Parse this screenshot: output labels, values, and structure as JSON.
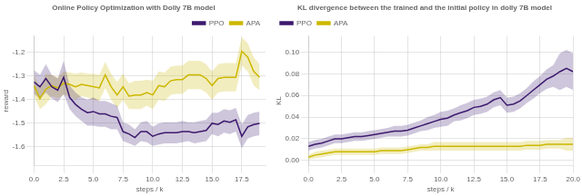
{
  "chart_data": [
    {
      "type": "line",
      "title": "Online Policy Optimization with Dolly 7B model",
      "xlabel": "steps / k",
      "ylabel": "reward",
      "xlim": [
        0.0,
        19.5
      ],
      "ylim": [
        -1.68,
        -1.13
      ],
      "xticks": [
        {
          "value": 0,
          "label": "0.0"
        },
        2.5,
        {
          "value": 5,
          "label": "5.0"
        },
        7.5,
        {
          "value": 10,
          "label": "10.0"
        },
        12.5,
        {
          "value": 15,
          "label": "15.0"
        },
        17.5
      ],
      "yticks": [
        -1.6,
        -1.5,
        -1.4,
        -1.3,
        -1.2
      ],
      "grid": true,
      "legend": "upper right",
      "x": [
        0.0,
        0.5,
        1.0,
        1.5,
        2.0,
        2.5,
        3.0,
        3.5,
        4.0,
        4.5,
        5.0,
        5.5,
        6.0,
        6.5,
        7.0,
        7.5,
        8.0,
        8.5,
        9.0,
        9.5,
        10.0,
        10.5,
        11.0,
        11.5,
        12.0,
        12.5,
        13.0,
        13.5,
        14.0,
        14.5,
        15.0,
        15.5,
        16.0,
        16.5,
        17.0,
        17.5,
        18.0,
        18.5,
        19.0
      ],
      "series": [
        {
          "name": "PPO",
          "color": "#3d1a6e",
          "values": [
            -1.325,
            -1.345,
            -1.31,
            -1.345,
            -1.36,
            -1.305,
            -1.39,
            -1.42,
            -1.44,
            -1.455,
            -1.45,
            -1.46,
            -1.46,
            -1.47,
            -1.475,
            -1.535,
            -1.545,
            -1.56,
            -1.535,
            -1.535,
            -1.555,
            -1.545,
            -1.54,
            -1.54,
            -1.54,
            -1.535,
            -1.535,
            -1.54,
            -1.535,
            -1.53,
            -1.5,
            -1.505,
            -1.49,
            -1.495,
            -1.485,
            -1.555,
            -1.515,
            -1.505,
            -1.5
          ],
          "lo": [
            -1.375,
            -1.395,
            -1.37,
            -1.395,
            -1.41,
            -1.375,
            -1.44,
            -1.47,
            -1.49,
            -1.51,
            -1.51,
            -1.515,
            -1.515,
            -1.525,
            -1.525,
            -1.575,
            -1.585,
            -1.595,
            -1.575,
            -1.58,
            -1.595,
            -1.59,
            -1.585,
            -1.585,
            -1.585,
            -1.58,
            -1.575,
            -1.585,
            -1.58,
            -1.575,
            -1.545,
            -1.555,
            -1.54,
            -1.545,
            -1.535,
            -1.605,
            -1.565,
            -1.555,
            -1.55
          ],
          "hi": [
            -1.275,
            -1.295,
            -1.25,
            -1.295,
            -1.31,
            -1.235,
            -1.34,
            -1.37,
            -1.39,
            -1.4,
            -1.39,
            -1.405,
            -1.405,
            -1.415,
            -1.425,
            -1.495,
            -1.505,
            -1.525,
            -1.495,
            -1.49,
            -1.515,
            -1.5,
            -1.495,
            -1.495,
            -1.495,
            -1.49,
            -1.495,
            -1.495,
            -1.49,
            -1.485,
            -1.455,
            -1.455,
            -1.44,
            -1.445,
            -1.435,
            -1.505,
            -1.465,
            -1.455,
            -1.45
          ]
        },
        {
          "name": "APA",
          "color": "#ccb800",
          "values": [
            -1.34,
            -1.395,
            -1.355,
            -1.34,
            -1.35,
            -1.33,
            -1.335,
            -1.345,
            -1.335,
            -1.34,
            -1.345,
            -1.35,
            -1.295,
            -1.345,
            -1.38,
            -1.345,
            -1.385,
            -1.38,
            -1.38,
            -1.37,
            -1.38,
            -1.34,
            -1.345,
            -1.32,
            -1.315,
            -1.315,
            -1.295,
            -1.295,
            -1.295,
            -1.31,
            -1.34,
            -1.31,
            -1.305,
            -1.305,
            -1.305,
            -1.195,
            -1.22,
            -1.28,
            -1.305
          ],
          "lo": [
            -1.385,
            -1.44,
            -1.42,
            -1.385,
            -1.395,
            -1.38,
            -1.385,
            -1.4,
            -1.385,
            -1.39,
            -1.4,
            -1.405,
            -1.35,
            -1.4,
            -1.435,
            -1.4,
            -1.44,
            -1.44,
            -1.44,
            -1.425,
            -1.44,
            -1.4,
            -1.405,
            -1.38,
            -1.375,
            -1.375,
            -1.355,
            -1.355,
            -1.355,
            -1.37,
            -1.4,
            -1.37,
            -1.365,
            -1.365,
            -1.365,
            -1.255,
            -1.28,
            -1.34,
            -1.36
          ],
          "hi": [
            -1.295,
            -1.35,
            -1.29,
            -1.295,
            -1.305,
            -1.28,
            -1.285,
            -1.29,
            -1.285,
            -1.29,
            -1.29,
            -1.295,
            -1.24,
            -1.29,
            -1.325,
            -1.29,
            -1.33,
            -1.32,
            -1.32,
            -1.315,
            -1.32,
            -1.28,
            -1.285,
            -1.26,
            -1.255,
            -1.255,
            -1.235,
            -1.235,
            -1.235,
            -1.25,
            -1.28,
            -1.25,
            -1.245,
            -1.245,
            -1.245,
            -1.135,
            -1.16,
            -1.22,
            -1.25
          ]
        }
      ]
    },
    {
      "type": "line",
      "title": "KL divergence between the trained and the initial policy in dolly 7B model",
      "xlabel": "steps / k",
      "ylabel": "KL",
      "xlim": [
        0.0,
        20.0
      ],
      "ylim": [
        -0.005,
        0.115
      ],
      "xticks": [
        {
          "value": 0,
          "label": "0.0"
        },
        2.5,
        {
          "value": 5,
          "label": "5.0"
        },
        7.5,
        {
          "value": 10,
          "label": "10.0"
        },
        12.5,
        {
          "value": 15,
          "label": "15.0"
        },
        17.5,
        {
          "value": 20,
          "label": "20.0"
        }
      ],
      "yticks": [
        {
          "value": 0,
          "label": "0.00"
        },
        0.02,
        0.04,
        0.06,
        0.08,
        {
          "value": 0.1,
          "label": "0.10"
        }
      ],
      "grid": true,
      "legend": "upper left",
      "x": [
        0.0,
        0.5,
        1.0,
        1.5,
        2.0,
        2.5,
        3.0,
        3.5,
        4.0,
        4.5,
        5.0,
        5.5,
        6.0,
        6.5,
        7.0,
        7.5,
        8.0,
        8.5,
        9.0,
        9.5,
        10.0,
        10.5,
        11.0,
        11.5,
        12.0,
        12.5,
        13.0,
        13.5,
        14.0,
        14.5,
        15.0,
        15.5,
        16.0,
        16.5,
        17.0,
        17.5,
        18.0,
        18.5,
        19.0,
        19.5,
        20.0
      ],
      "series": [
        {
          "name": "PPO",
          "color": "#3d1a6e",
          "values": [
            0.013,
            0.015,
            0.016,
            0.018,
            0.02,
            0.02,
            0.021,
            0.022,
            0.022,
            0.023,
            0.024,
            0.025,
            0.026,
            0.027,
            0.027,
            0.028,
            0.03,
            0.032,
            0.034,
            0.036,
            0.038,
            0.039,
            0.042,
            0.044,
            0.046,
            0.049,
            0.05,
            0.052,
            0.056,
            0.058,
            0.051,
            0.052,
            0.055,
            0.06,
            0.065,
            0.07,
            0.075,
            0.078,
            0.082,
            0.085,
            0.082
          ],
          "lo": [
            0.009,
            0.011,
            0.012,
            0.014,
            0.016,
            0.016,
            0.017,
            0.018,
            0.018,
            0.019,
            0.02,
            0.021,
            0.022,
            0.022,
            0.022,
            0.023,
            0.025,
            0.027,
            0.028,
            0.03,
            0.031,
            0.032,
            0.036,
            0.037,
            0.039,
            0.042,
            0.043,
            0.045,
            0.049,
            0.051,
            0.044,
            0.045,
            0.048,
            0.053,
            0.057,
            0.062,
            0.066,
            0.068,
            0.065,
            0.068,
            0.065
          ],
          "hi": [
            0.017,
            0.019,
            0.02,
            0.022,
            0.024,
            0.024,
            0.025,
            0.026,
            0.026,
            0.027,
            0.028,
            0.029,
            0.03,
            0.032,
            0.032,
            0.033,
            0.035,
            0.037,
            0.04,
            0.042,
            0.045,
            0.046,
            0.048,
            0.051,
            0.053,
            0.056,
            0.057,
            0.059,
            0.063,
            0.065,
            0.058,
            0.059,
            0.062,
            0.067,
            0.073,
            0.078,
            0.084,
            0.088,
            0.099,
            0.102,
            0.099
          ]
        },
        {
          "name": "APA",
          "color": "#ccb800",
          "values": [
            0.003,
            0.005,
            0.006,
            0.007,
            0.008,
            0.008,
            0.008,
            0.008,
            0.008,
            0.008,
            0.008,
            0.009,
            0.009,
            0.009,
            0.009,
            0.01,
            0.011,
            0.012,
            0.012,
            0.013,
            0.013,
            0.013,
            0.013,
            0.013,
            0.013,
            0.013,
            0.013,
            0.013,
            0.013,
            0.013,
            0.013,
            0.013,
            0.013,
            0.014,
            0.014,
            0.014,
            0.015,
            0.015,
            0.015,
            0.015,
            0.015
          ],
          "lo": [
            0.001,
            0.002,
            0.003,
            0.004,
            0.005,
            0.005,
            0.005,
            0.005,
            0.005,
            0.005,
            0.005,
            0.006,
            0.006,
            0.006,
            0.006,
            0.007,
            0.008,
            0.009,
            0.009,
            0.009,
            0.009,
            0.009,
            0.009,
            0.009,
            0.009,
            0.009,
            0.009,
            0.009,
            0.009,
            0.009,
            0.009,
            0.009,
            0.009,
            0.01,
            0.01,
            0.01,
            0.011,
            0.011,
            0.011,
            0.009,
            0.009
          ],
          "hi": [
            0.005,
            0.008,
            0.009,
            0.01,
            0.011,
            0.011,
            0.011,
            0.011,
            0.011,
            0.011,
            0.011,
            0.012,
            0.012,
            0.012,
            0.012,
            0.013,
            0.014,
            0.015,
            0.015,
            0.017,
            0.017,
            0.017,
            0.017,
            0.017,
            0.017,
            0.017,
            0.017,
            0.017,
            0.017,
            0.017,
            0.017,
            0.017,
            0.017,
            0.018,
            0.018,
            0.018,
            0.019,
            0.019,
            0.019,
            0.021,
            0.021
          ]
        }
      ]
    }
  ]
}
